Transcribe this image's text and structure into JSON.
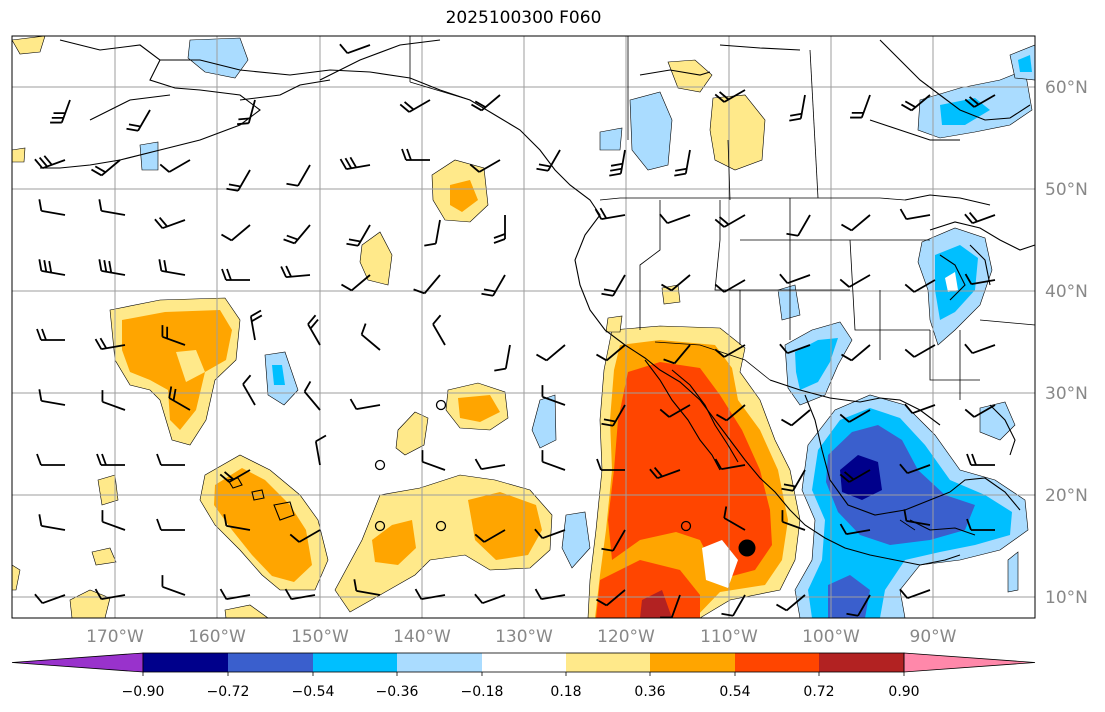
{
  "title": "2025100300 F060",
  "lat_labels": [
    "60°N",
    "50°N",
    "40°N",
    "30°N",
    "20°N",
    "10°N"
  ],
  "lon_labels": [
    "170°W",
    "160°W",
    "150°W",
    "140°W",
    "130°W",
    "120°W",
    "110°W",
    "100°W",
    "90°W"
  ],
  "colorbar": {
    "ticks": [
      "−0.90",
      "−0.72",
      "−0.54",
      "−0.36",
      "−0.18",
      "0.18",
      "0.36",
      "0.54",
      "0.72",
      "0.90"
    ],
    "colors": [
      "#9932cc",
      "#00008b",
      "#3a5fcd",
      "#00bfff",
      "#aadcff",
      "#ffffff",
      "#ffe98a",
      "#ffa500",
      "#ff4500",
      "#b22222",
      "#ff88aa"
    ]
  },
  "colors": {
    "neg_light": "#aadcff",
    "neg_mid": "#00bfff",
    "neg_strong": "#3a5fcd",
    "neg_max": "#00008b",
    "pos_light": "#ffe98a",
    "pos_mid": "#ffa500",
    "pos_strong": "#ff4500",
    "pos_max": "#b22222"
  }
}
